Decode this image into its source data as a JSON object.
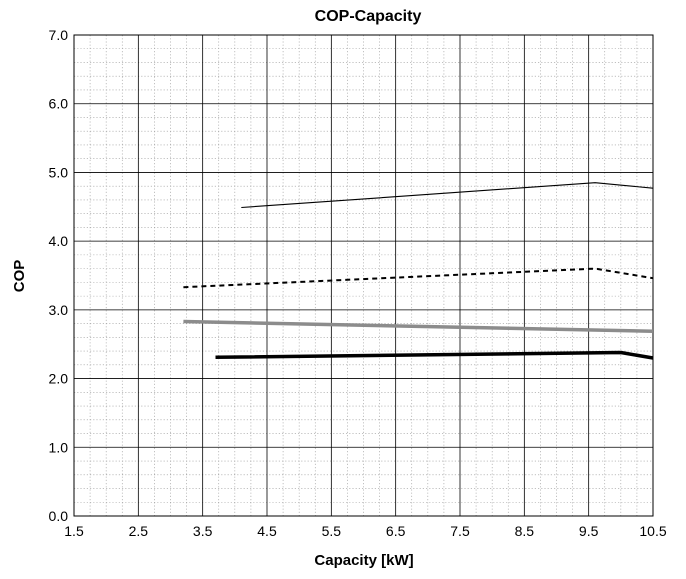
{
  "chart_data": {
    "type": "line",
    "title": "COP-Capacity",
    "xlabel": "Capacity [kW]",
    "ylabel": "COP",
    "xlim": [
      1.5,
      10.5
    ],
    "ylim": [
      0.0,
      7.0
    ],
    "x_ticks": [
      "1.5",
      "2.5",
      "3.5",
      "4.5",
      "5.5",
      "6.5",
      "7.5",
      "8.5",
      "9.5",
      "10.5"
    ],
    "x_tick_values": [
      1.5,
      2.5,
      3.5,
      4.5,
      5.5,
      6.5,
      7.5,
      8.5,
      9.5,
      10.5
    ],
    "y_ticks": [
      "0.0",
      "1.0",
      "2.0",
      "3.0",
      "4.0",
      "5.0",
      "6.0",
      "7.0"
    ],
    "y_tick_values": [
      0,
      1,
      2,
      3,
      4,
      5,
      6,
      7
    ],
    "grid": true,
    "minor_grid": true,
    "legend": "none",
    "series": [
      {
        "x": [
          4.1,
          9.6,
          10.5
        ],
        "y": [
          4.49,
          4.85,
          4.77
        ],
        "style": "thin-solid",
        "color": "#000000"
      },
      {
        "x": [
          3.2,
          9.6,
          10.5
        ],
        "y": [
          3.33,
          3.6,
          3.46
        ],
        "style": "dashed",
        "color": "#000000"
      },
      {
        "x": [
          3.2,
          10.5
        ],
        "y": [
          2.83,
          2.69
        ],
        "style": "thick-solid",
        "color": "#8c8c8c"
      },
      {
        "x": [
          3.7,
          10.0,
          10.5
        ],
        "y": [
          2.31,
          2.38,
          2.3
        ],
        "style": "thick-solid",
        "color": "#000000"
      }
    ]
  }
}
